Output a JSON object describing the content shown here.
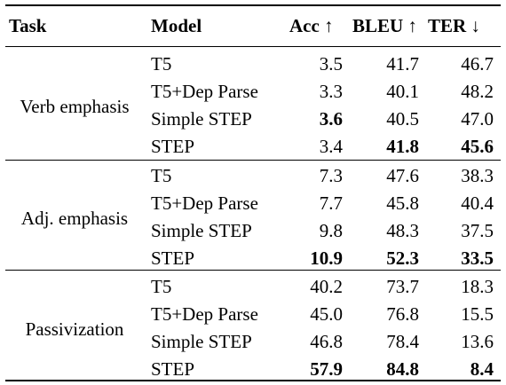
{
  "headers": {
    "task": "Task",
    "model": "Model",
    "acc": "Acc ↑",
    "bleu": "BLEU ↑",
    "ter": "TER ↓"
  },
  "groups": [
    {
      "task": "Verb emphasis",
      "rows": [
        {
          "model": "T5",
          "acc": "3.5",
          "bleu": "41.7",
          "ter": "46.7"
        },
        {
          "model": "T5+Dep Parse",
          "acc": "3.3",
          "bleu": "40.1",
          "ter": "48.2"
        },
        {
          "model": "Simple STEP",
          "acc": "3.6",
          "bleu": "40.5",
          "ter": "47.0"
        },
        {
          "model": "STEP",
          "acc": "3.4",
          "bleu": "41.8",
          "ter": "45.6"
        }
      ]
    },
    {
      "task": "Adj. emphasis",
      "rows": [
        {
          "model": "T5",
          "acc": "7.3",
          "bleu": "47.6",
          "ter": "38.3"
        },
        {
          "model": "T5+Dep Parse",
          "acc": "7.7",
          "bleu": "45.8",
          "ter": "40.4"
        },
        {
          "model": "Simple STEP",
          "acc": "9.8",
          "bleu": "48.3",
          "ter": "37.5"
        },
        {
          "model": "STEP",
          "acc": "10.9",
          "bleu": "52.3",
          "ter": "33.5"
        }
      ]
    },
    {
      "task": "Passivization",
      "rows": [
        {
          "model": "T5",
          "acc": "40.2",
          "bleu": "73.7",
          "ter": "18.3"
        },
        {
          "model": "T5+Dep Parse",
          "acc": "45.0",
          "bleu": "76.8",
          "ter": "15.5"
        },
        {
          "model": "Simple STEP",
          "acc": "46.8",
          "bleu": "78.4",
          "ter": "13.6"
        },
        {
          "model": "STEP",
          "acc": "57.9",
          "bleu": "84.8",
          "ter": "8.4"
        }
      ]
    }
  ],
  "bold_cells": [
    "0.2.acc",
    "0.3.bleu",
    "0.3.ter",
    "1.3.acc",
    "1.3.bleu",
    "1.3.ter",
    "2.3.acc",
    "2.3.bleu",
    "2.3.ter"
  ]
}
